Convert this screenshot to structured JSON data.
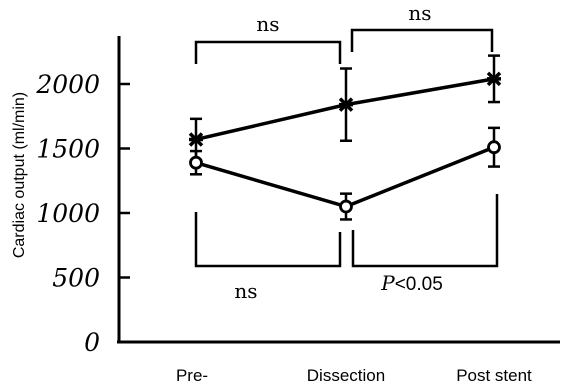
{
  "chart_data": {
    "type": "line",
    "categories": [
      "Pre-",
      "Dissection",
      "Post stent"
    ],
    "ylabel": "Cardiac output (ml/min)",
    "xlabel": "",
    "ylim": [
      0,
      2300
    ],
    "yticks": [
      "0",
      "500",
      "1000",
      "1500",
      "2000"
    ],
    "series": [
      {
        "marker": "star",
        "values": [
          1570,
          1840,
          2040
        ],
        "errors": [
          160,
          280,
          180
        ]
      },
      {
        "marker": "open-circle",
        "values": [
          1390,
          1050,
          1510
        ],
        "errors": [
          90,
          100,
          150
        ]
      }
    ],
    "annotations": {
      "top_left": "ns",
      "top_right": "ns",
      "bottom_left": "ns",
      "bottom_right_p": "P",
      "bottom_right_rest": "<0.05"
    }
  }
}
